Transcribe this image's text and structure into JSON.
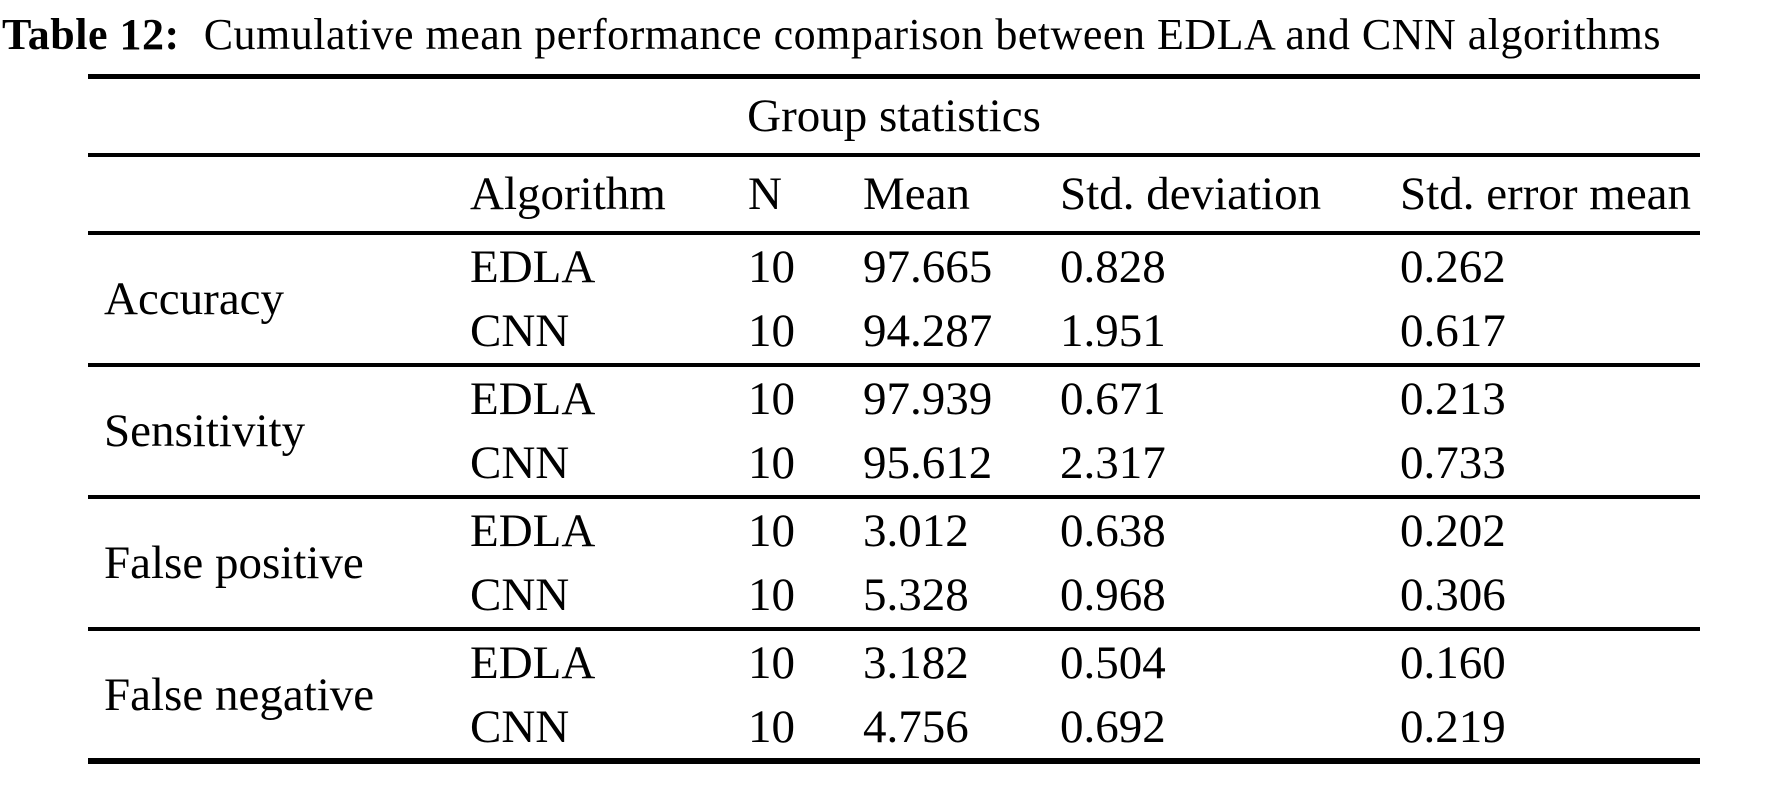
{
  "caption": {
    "label": "Table 12:",
    "text": "Cumulative mean performance comparison between EDLA and CNN algorithms"
  },
  "group_header": "Group statistics",
  "columns": {
    "metric": "",
    "algorithm": "Algorithm",
    "n": "N",
    "mean": "Mean",
    "std_deviation": "Std. deviation",
    "std_error_mean": "Std. error mean"
  },
  "sections": [
    {
      "metric": "Accuracy",
      "rows": [
        {
          "algorithm": "EDLA",
          "n": "10",
          "mean": "97.665",
          "std_dev": "0.828",
          "std_err": "0.262"
        },
        {
          "algorithm": "CNN",
          "n": "10",
          "mean": "94.287",
          "std_dev": "1.951",
          "std_err": "0.617"
        }
      ]
    },
    {
      "metric": "Sensitivity",
      "rows": [
        {
          "algorithm": "EDLA",
          "n": "10",
          "mean": "97.939",
          "std_dev": "0.671",
          "std_err": "0.213"
        },
        {
          "algorithm": "CNN",
          "n": "10",
          "mean": "95.612",
          "std_dev": "2.317",
          "std_err": "0.733"
        }
      ]
    },
    {
      "metric": "False positive",
      "rows": [
        {
          "algorithm": "EDLA",
          "n": "10",
          "mean": "3.012",
          "std_dev": "0.638",
          "std_err": "0.202"
        },
        {
          "algorithm": "CNN",
          "n": "10",
          "mean": "5.328",
          "std_dev": "0.968",
          "std_err": "0.306"
        }
      ]
    },
    {
      "metric": "False negative",
      "rows": [
        {
          "algorithm": "EDLA",
          "n": "10",
          "mean": "3.182",
          "std_dev": "0.504",
          "std_err": "0.160"
        },
        {
          "algorithm": "CNN",
          "n": "10",
          "mean": "4.756",
          "std_dev": "0.692",
          "std_err": "0.219"
        }
      ]
    }
  ],
  "colors": {
    "text": "#000000",
    "background": "#ffffff",
    "rule": "#000000"
  }
}
